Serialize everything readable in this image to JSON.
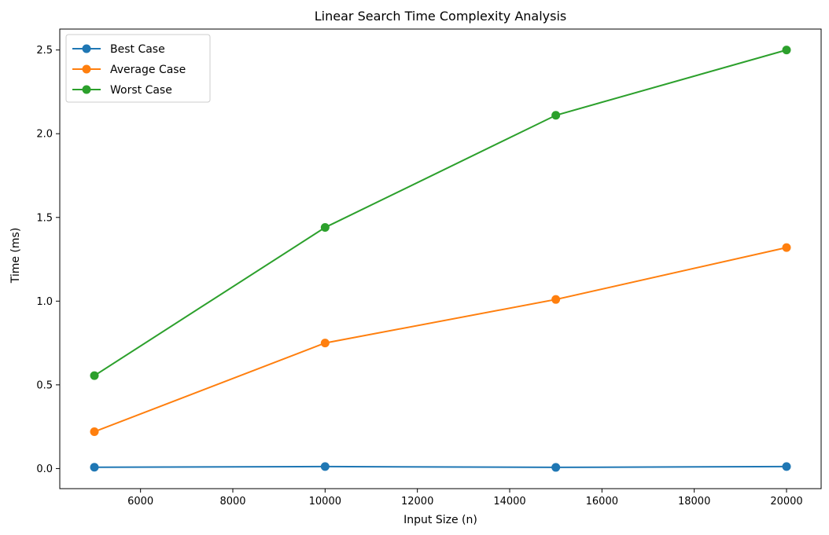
{
  "chart_data": {
    "type": "line",
    "title": "Linear Search Time Complexity Analysis",
    "xlabel": "Input Size (n)",
    "ylabel": "Time (ms)",
    "x": [
      5000,
      10000,
      15000,
      20000
    ],
    "xlim": [
      4250,
      20750
    ],
    "ylim": [
      -0.12,
      2.625
    ],
    "xticks": [
      6000,
      8000,
      10000,
      12000,
      14000,
      16000,
      18000,
      20000
    ],
    "xtick_labels": [
      "6000",
      "8000",
      "10000",
      "12000",
      "14000",
      "16000",
      "18000",
      "20000"
    ],
    "yticks": [
      0.0,
      0.5,
      1.0,
      1.5,
      2.0,
      2.5
    ],
    "ytick_labels": [
      "0.0",
      "0.5",
      "1.0",
      "1.5",
      "2.0",
      "2.5"
    ],
    "grid": false,
    "legend_position": "upper-left",
    "series": [
      {
        "name": "Best Case",
        "color": "#1f77b4",
        "marker": "circle",
        "values": [
          0.008,
          0.012,
          0.007,
          0.012
        ]
      },
      {
        "name": "Average Case",
        "color": "#ff7f0e",
        "marker": "circle",
        "values": [
          0.22,
          0.75,
          1.01,
          1.32
        ]
      },
      {
        "name": "Worst Case",
        "color": "#2ca02c",
        "marker": "circle",
        "values": [
          0.555,
          1.44,
          2.11,
          2.5
        ]
      }
    ]
  }
}
